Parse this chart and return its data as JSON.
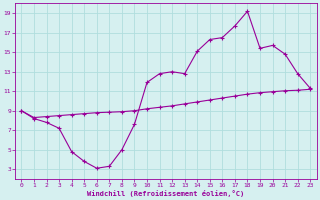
{
  "xlabel": "Windchill (Refroidissement éolien,°C)",
  "bg_color": "#d6f0f0",
  "grid_color": "#b0dede",
  "line_color": "#990099",
  "xlim": [
    -0.5,
    23.5
  ],
  "ylim": [
    2.0,
    20.0
  ],
  "xticks": [
    0,
    1,
    2,
    3,
    4,
    5,
    6,
    7,
    8,
    9,
    10,
    11,
    12,
    13,
    14,
    15,
    16,
    17,
    18,
    19,
    20,
    21,
    22,
    23
  ],
  "yticks": [
    3,
    5,
    7,
    9,
    11,
    13,
    15,
    17,
    19
  ],
  "curve1_x": [
    0,
    1,
    2,
    3,
    4,
    5,
    6,
    7,
    8,
    9,
    10,
    11,
    12,
    13,
    14,
    15,
    16,
    17,
    18,
    19,
    20,
    21,
    22,
    23
  ],
  "curve1_y": [
    9.0,
    8.2,
    7.8,
    7.2,
    4.8,
    3.8,
    3.1,
    3.3,
    5.0,
    7.6,
    11.9,
    12.8,
    13.0,
    12.8,
    15.1,
    16.3,
    16.5,
    17.7,
    19.2,
    15.4,
    15.7,
    14.8,
    12.8,
    11.3
  ],
  "curve2_x": [
    0,
    1,
    2,
    3,
    4,
    5,
    6,
    7,
    8,
    9,
    10,
    11,
    12,
    13,
    14,
    15,
    16,
    17,
    18,
    19,
    20,
    21,
    22,
    23
  ],
  "curve2_y": [
    9.0,
    8.3,
    8.4,
    8.5,
    8.6,
    8.7,
    8.8,
    8.85,
    8.9,
    9.0,
    9.2,
    9.35,
    9.5,
    9.7,
    9.9,
    10.1,
    10.3,
    10.5,
    10.7,
    10.85,
    10.95,
    11.05,
    11.1,
    11.2
  ]
}
